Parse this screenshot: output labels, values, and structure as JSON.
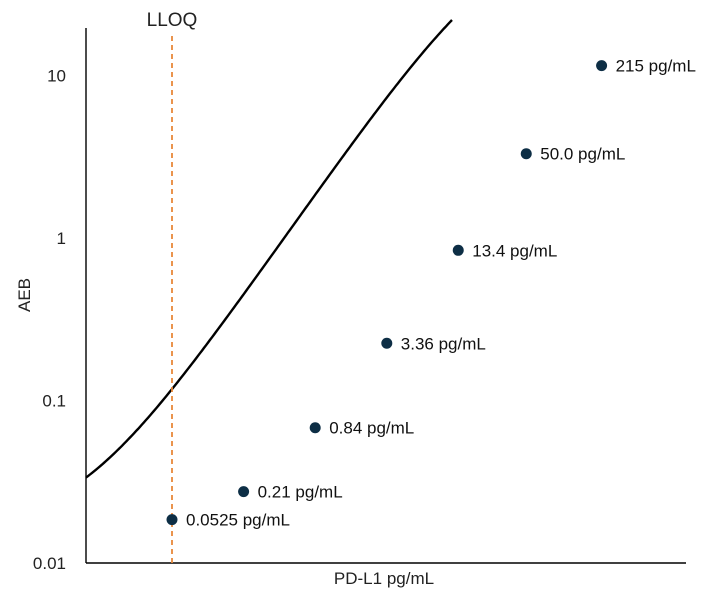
{
  "chart_data": {
    "type": "scatter",
    "title": "",
    "xlabel": "PD-L1 pg/mL",
    "ylabel": "AEB",
    "y_scale": "log",
    "ylim": [
      0.01,
      20
    ],
    "yticks": [
      {
        "value": 0.01,
        "label": "0.01"
      },
      {
        "value": 0.1,
        "label": "0.1"
      },
      {
        "value": 1,
        "label": "1"
      },
      {
        "value": 10,
        "label": "10"
      }
    ],
    "x_tick_labels": "none",
    "grid": false,
    "legend": "none",
    "series": [
      {
        "marker": "circle",
        "color": "#0d2e45",
        "line_color": "#000000",
        "points": [
          {
            "x": 0.0525,
            "y": 0.0185,
            "label": "0.0525 pg/mL"
          },
          {
            "x": 0.21,
            "y": 0.0275,
            "label": "0.21 pg/mL"
          },
          {
            "x": 0.84,
            "y": 0.068,
            "label": "0.84 pg/mL"
          },
          {
            "x": 3.36,
            "y": 0.225,
            "label": "3.36 pg/mL"
          },
          {
            "x": 13.4,
            "y": 0.84,
            "label": "13.4 pg/mL"
          },
          {
            "x": 50.0,
            "y": 3.3,
            "label": "50.0 pg/mL"
          },
          {
            "x": 215,
            "y": 11.5,
            "label": "215 pg/mL"
          }
        ]
      }
    ],
    "reference_line": {
      "label": "LLOQ",
      "x": 0.0525,
      "color": "#e8893a",
      "style": "dashed"
    }
  }
}
